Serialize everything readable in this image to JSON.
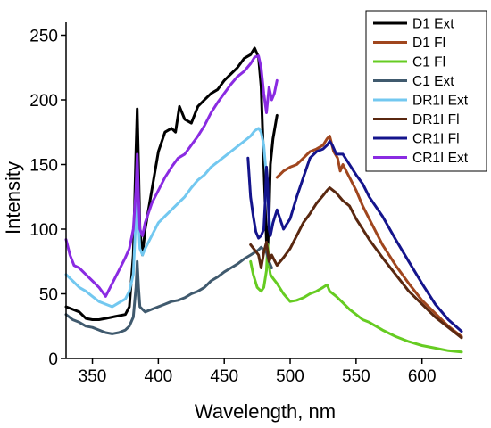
{
  "chart_data": {
    "type": "line",
    "title": "",
    "xlabel": "Wavelength, nm",
    "ylabel": "Intensity",
    "xlim": [
      330,
      630
    ],
    "ylim": [
      0,
      260
    ],
    "xticks": [
      350,
      400,
      450,
      500,
      550,
      600
    ],
    "yticks": [
      0,
      50,
      100,
      150,
      200,
      250
    ],
    "legend_position": "top-right",
    "grid": false,
    "series": [
      {
        "name": "D1 Ext",
        "color": "#000000",
        "x": [
          330,
          335,
          340,
          345,
          350,
          355,
          360,
          365,
          370,
          375,
          378,
          381,
          383,
          384,
          385,
          386,
          388,
          390,
          395,
          400,
          405,
          410,
          413,
          416,
          420,
          425,
          430,
          435,
          440,
          445,
          450,
          455,
          460,
          465,
          470,
          473,
          476,
          478,
          480,
          482,
          483,
          484,
          485,
          487,
          490
        ],
        "y": [
          40,
          38,
          36,
          31,
          30,
          30,
          31,
          32,
          33,
          34,
          40,
          80,
          160,
          193,
          150,
          100,
          80,
          100,
          130,
          160,
          175,
          178,
          175,
          195,
          185,
          182,
          195,
          200,
          205,
          208,
          215,
          220,
          225,
          232,
          235,
          240,
          233,
          210,
          150,
          90,
          85,
          110,
          150,
          170,
          188
        ]
      },
      {
        "name": "D1 Fl",
        "color": "#a0461e",
        "x": [
          490,
          495,
          500,
          505,
          510,
          515,
          520,
          525,
          528,
          530,
          533,
          536,
          538,
          540,
          545,
          550,
          555,
          560,
          565,
          570,
          580,
          590,
          600,
          610,
          620,
          630
        ],
        "y": [
          140,
          145,
          148,
          150,
          155,
          160,
          162,
          165,
          170,
          172,
          160,
          155,
          145,
          150,
          140,
          130,
          118,
          108,
          98,
          88,
          72,
          58,
          45,
          35,
          25,
          17
        ]
      },
      {
        "name": "C1 Fl",
        "color": "#66cc22",
        "x": [
          470,
          472,
          475,
          478,
          480,
          482,
          483,
          484,
          485,
          487,
          490,
          495,
          500,
          505,
          510,
          515,
          520,
          525,
          528,
          530,
          535,
          540,
          545,
          550,
          555,
          560,
          570,
          580,
          590,
          600,
          610,
          620,
          630
        ],
        "y": [
          75,
          65,
          55,
          52,
          55,
          68,
          88,
          72,
          65,
          62,
          58,
          50,
          44,
          45,
          47,
          50,
          52,
          55,
          57,
          52,
          48,
          43,
          38,
          34,
          30,
          28,
          22,
          17,
          13,
          10,
          8,
          6,
          5
        ]
      },
      {
        "name": "C1 Ext",
        "color": "#405a6e",
        "x": [
          330,
          335,
          340,
          345,
          350,
          355,
          360,
          365,
          370,
          375,
          378,
          381,
          383,
          384,
          385,
          386,
          388,
          390,
          395,
          400,
          405,
          410,
          415,
          420,
          425,
          430,
          435,
          440,
          445,
          450,
          455,
          460,
          465,
          470,
          473,
          476,
          478,
          480,
          482,
          484,
          486
        ],
        "y": [
          34,
          30,
          28,
          25,
          24,
          22,
          20,
          19,
          20,
          22,
          25,
          32,
          55,
          75,
          55,
          40,
          38,
          36,
          38,
          40,
          42,
          44,
          45,
          47,
          50,
          52,
          55,
          60,
          63,
          67,
          70,
          73,
          77,
          80,
          82,
          84,
          86,
          84,
          82,
          75,
          70
        ]
      },
      {
        "name": "DR1I Ext",
        "color": "#73c8f0",
        "x": [
          330,
          335,
          340,
          345,
          350,
          355,
          360,
          365,
          370,
          375,
          378,
          381,
          383,
          384,
          385,
          386,
          388,
          390,
          395,
          400,
          405,
          410,
          415,
          420,
          425,
          430,
          435,
          440,
          445,
          450,
          455,
          460,
          465,
          470,
          473,
          476,
          478,
          480,
          482,
          484,
          485
        ],
        "y": [
          65,
          60,
          55,
          52,
          48,
          44,
          42,
          40,
          43,
          46,
          52,
          65,
          110,
          135,
          105,
          85,
          80,
          85,
          95,
          105,
          110,
          115,
          120,
          125,
          132,
          138,
          142,
          148,
          152,
          156,
          160,
          164,
          168,
          172,
          176,
          178,
          175,
          165,
          140,
          110,
          100
        ]
      },
      {
        "name": "DR1I Fl",
        "color": "#5a2810",
        "x": [
          470,
          473,
          476,
          478,
          480,
          482,
          484,
          486,
          488,
          490,
          495,
          500,
          505,
          510,
          515,
          520,
          525,
          528,
          530,
          535,
          540,
          545,
          550,
          555,
          560,
          565,
          570,
          580,
          590,
          600,
          610,
          620,
          630
        ],
        "y": [
          88,
          84,
          80,
          70,
          82,
          90,
          75,
          80,
          76,
          72,
          78,
          85,
          95,
          105,
          112,
          120,
          126,
          130,
          132,
          128,
          122,
          118,
          108,
          100,
          92,
          85,
          78,
          65,
          52,
          42,
          32,
          24,
          16
        ]
      },
      {
        "name": "CR1I Fl",
        "color": "#14148c",
        "x": [
          468,
          470,
          472,
          474,
          476,
          478,
          480,
          481,
          482,
          483,
          484,
          485,
          487,
          490,
          495,
          500,
          505,
          510,
          515,
          520,
          525,
          528,
          530,
          532,
          535,
          540,
          545,
          550,
          555,
          560,
          570,
          580,
          590,
          600,
          610,
          620,
          630
        ],
        "y": [
          155,
          125,
          110,
          98,
          93,
          95,
          100,
          120,
          148,
          135,
          100,
          95,
          105,
          115,
          100,
          108,
          125,
          140,
          155,
          160,
          162,
          165,
          168,
          165,
          158,
          158,
          150,
          142,
          135,
          125,
          110,
          92,
          75,
          58,
          42,
          30,
          21
        ]
      },
      {
        "name": "CR1I Ext",
        "color": "#8a2be2",
        "x": [
          330,
          333,
          336,
          340,
          345,
          350,
          355,
          360,
          365,
          370,
          375,
          378,
          381,
          383,
          384,
          385,
          386,
          388,
          390,
          395,
          400,
          405,
          410,
          415,
          420,
          425,
          430,
          435,
          440,
          445,
          450,
          455,
          460,
          465,
          470,
          473,
          476,
          478,
          480,
          482,
          484,
          486,
          488,
          490
        ],
        "y": [
          92,
          80,
          72,
          70,
          65,
          60,
          55,
          48,
          58,
          68,
          78,
          85,
          100,
          130,
          158,
          125,
          100,
          95,
          105,
          120,
          130,
          140,
          148,
          155,
          158,
          165,
          172,
          180,
          190,
          198,
          205,
          212,
          218,
          222,
          228,
          233,
          234,
          225,
          205,
          190,
          210,
          200,
          205,
          215
        ]
      }
    ]
  }
}
